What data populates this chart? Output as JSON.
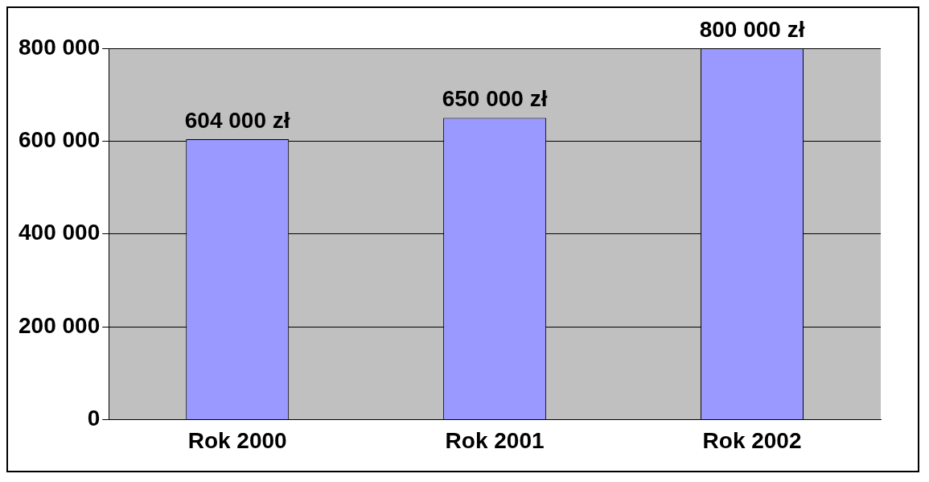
{
  "chart_data": {
    "type": "bar",
    "categories": [
      "Rok 2000",
      "Rok 2001",
      "Rok 2002"
    ],
    "values": [
      604000,
      650000,
      800000
    ],
    "value_labels": [
      "604 000 zł",
      "650 000 zł",
      "800 000 zł"
    ],
    "color": "#9999ff",
    "ylim": [
      0,
      800000
    ],
    "yticks": [
      {
        "value": 0,
        "label": "0"
      },
      {
        "value": 200000,
        "label": "200 000"
      },
      {
        "value": 400000,
        "label": "400 000"
      },
      {
        "value": 600000,
        "label": "600 000"
      },
      {
        "value": 800000,
        "label": "800 000"
      }
    ],
    "grid": "y",
    "legend": false
  }
}
